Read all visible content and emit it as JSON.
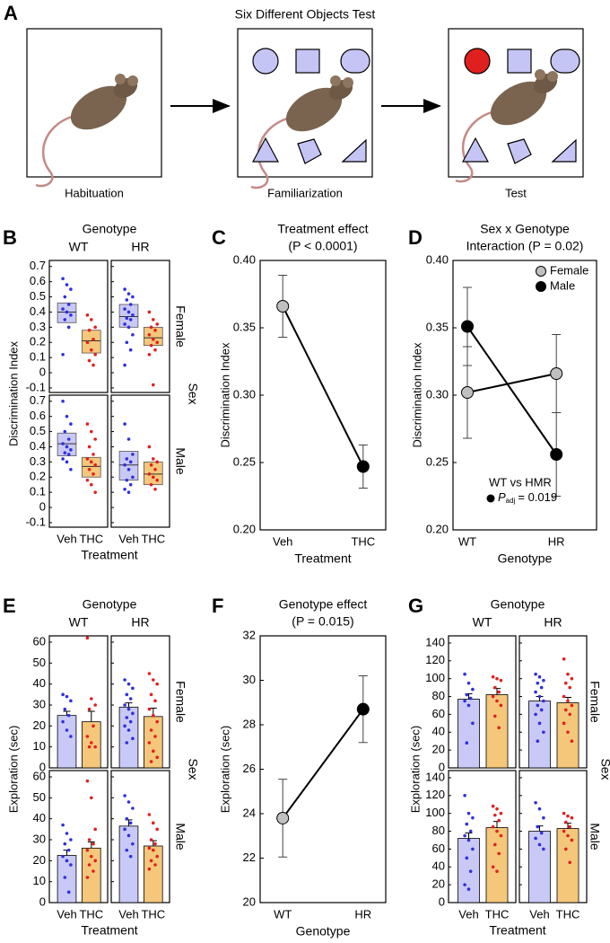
{
  "figure_a": {
    "panel_label": "A",
    "title": "Six Different Objects Test",
    "stages": [
      "Habituation",
      "Familiarization",
      "Test"
    ]
  },
  "chart_data": [
    {
      "type": "box_strip",
      "panel_label": "B",
      "column_title": "Genotype",
      "row_title": "Sex",
      "columns": [
        "WT",
        "HR"
      ],
      "rows": [
        "Female",
        "Male"
      ],
      "categories": [
        "Veh",
        "THC"
      ],
      "point_colors": [
        "#2f2fe0",
        "#e02020"
      ],
      "fill_colors": [
        "#c9c9f7",
        "#f5c77b"
      ],
      "xlabel": "Treatment",
      "ylabel": "Discrimination Index",
      "ylim": [
        -0.13,
        0.74
      ],
      "yticks": [
        -0.1,
        0,
        0.1,
        0.2,
        0.3,
        0.4,
        0.5,
        0.6,
        0.7
      ],
      "facets": [
        [
          [
            {
              "q1": 0.33,
              "median": 0.4,
              "q3": 0.46,
              "points": [
                0.62,
                0.58,
                0.55,
                0.5,
                0.45,
                0.42,
                0.4,
                0.38,
                0.35,
                0.3,
                0.12
              ]
            },
            {
              "q1": 0.13,
              "median": 0.21,
              "q3": 0.28,
              "points": [
                0.38,
                0.35,
                0.3,
                0.28,
                0.22,
                0.2,
                0.15,
                0.12,
                0.08,
                0.05
              ]
            }
          ],
          [
            {
              "q1": 0.3,
              "median": 0.37,
              "q3": 0.45,
              "points": [
                0.55,
                0.52,
                0.5,
                0.48,
                0.45,
                0.42,
                0.4,
                0.38,
                0.36,
                0.35,
                0.32,
                0.3,
                0.25,
                0.2,
                0.15,
                0.05
              ]
            },
            {
              "q1": 0.18,
              "median": 0.23,
              "q3": 0.3,
              "points": [
                0.4,
                0.35,
                0.32,
                0.3,
                0.28,
                0.25,
                0.22,
                0.2,
                0.18,
                0.15,
                0.12,
                -0.08
              ]
            }
          ]
        ],
        [
          [
            {
              "q1": 0.34,
              "median": 0.42,
              "q3": 0.49,
              "points": [
                0.7,
                0.6,
                0.55,
                0.5,
                0.45,
                0.42,
                0.4,
                0.38,
                0.36,
                0.35,
                0.32,
                0.3,
                0.25
              ]
            },
            {
              "q1": 0.2,
              "median": 0.27,
              "q3": 0.33,
              "points": [
                0.55,
                0.5,
                0.45,
                0.4,
                0.35,
                0.32,
                0.3,
                0.28,
                0.25,
                0.22,
                0.18,
                0.15,
                0.1
              ]
            }
          ],
          [
            {
              "q1": 0.18,
              "median": 0.28,
              "q3": 0.37,
              "points": [
                0.55,
                0.45,
                0.35,
                0.32,
                0.3,
                0.28,
                0.25,
                0.2,
                0.18,
                0.15,
                0.12,
                0.1
              ]
            },
            {
              "q1": 0.15,
              "median": 0.22,
              "q3": 0.3,
              "points": [
                0.4,
                0.32,
                0.3,
                0.28,
                0.25,
                0.22,
                0.2,
                0.18,
                0.15,
                0.12
              ]
            }
          ]
        ]
      ]
    },
    {
      "type": "line",
      "panel_label": "C",
      "title": [
        "Treatment effect",
        "(P < 0.0001)"
      ],
      "categories": [
        "Veh",
        "THC"
      ],
      "xlabel": "Treatment",
      "ylabel": "Discrimination Index",
      "ylim": [
        0.2,
        0.4
      ],
      "yticks": [
        {
          "value": 0.2,
          "label": "0.20"
        },
        {
          "value": 0.25,
          "label": "0.25"
        },
        {
          "value": 0.3,
          "label": "0.30"
        },
        {
          "value": 0.35,
          "label": "0.35"
        },
        {
          "value": 0.4,
          "label": "0.40"
        }
      ],
      "series": [
        {
          "color": "#000000",
          "point_colors": [
            "#c0c0c0",
            "#000000"
          ],
          "values": [
            0.366,
            0.247
          ],
          "errors": [
            0.023,
            0.016
          ]
        }
      ]
    },
    {
      "type": "line",
      "panel_label": "D",
      "title": [
        "Sex x Genotype",
        "Interaction (P = 0.02)"
      ],
      "categories": [
        "WT",
        "HR"
      ],
      "xlabel": "Genotype",
      "ylabel": "Discrimination Index",
      "ylim": [
        0.2,
        0.4
      ],
      "yticks": [
        {
          "value": 0.2,
          "label": "0.20"
        },
        {
          "value": 0.25,
          "label": "0.25"
        },
        {
          "value": 0.3,
          "label": "0.30"
        },
        {
          "value": 0.35,
          "label": "0.35"
        },
        {
          "value": 0.4,
          "label": "0.40"
        }
      ],
      "legend": "upper right",
      "series": [
        {
          "name": "Female",
          "color": "#c0c0c0",
          "values": [
            0.302,
            0.316
          ],
          "errors": [
            0.034,
            0.029
          ]
        },
        {
          "name": "Male",
          "color": "#000000",
          "values": [
            0.351,
            0.256
          ],
          "errors": [
            0.029,
            0.031
          ]
        }
      ],
      "annotation": {
        "title": "WT vs HMR",
        "symbol": "P",
        "subscript": "adj",
        "text": "= 0.019"
      }
    },
    {
      "type": "bar_strip",
      "panel_label": "E",
      "column_title": "Genotype",
      "row_title": "Sex",
      "columns": [
        "WT",
        "HR"
      ],
      "rows": [
        "Female",
        "Male"
      ],
      "categories": [
        "Veh",
        "THC"
      ],
      "point_colors": [
        "#2f2fe0",
        "#e02020"
      ],
      "fill_colors": [
        "#c9c9f7",
        "#f5c77b"
      ],
      "xlabel": "Treatment",
      "ylabel": "Exploration (sec)",
      "ylim": [
        0,
        63
      ],
      "yticks": [
        0,
        10,
        20,
        30,
        40,
        50,
        60
      ],
      "facets": [
        [
          [
            {
              "mean": 25,
              "error": 2,
              "points": [
                35,
                34,
                32,
                28,
                25,
                22,
                18,
                15
              ]
            },
            {
              "mean": 22,
              "error": 5,
              "points": [
                62,
                33,
                30,
                28,
                20,
                15,
                12,
                10,
                10
              ]
            }
          ],
          [
            {
              "mean": 29,
              "error": 2,
              "points": [
                42,
                40,
                38,
                35,
                33,
                30,
                28,
                26,
                24,
                22,
                20,
                18,
                14,
                12
              ]
            },
            {
              "mean": 24.5,
              "error": 4,
              "points": [
                45,
                42,
                40,
                35,
                32,
                28,
                25,
                22,
                18,
                15,
                12,
                8,
                5,
                3
              ]
            }
          ]
        ],
        [
          [
            {
              "mean": 22.5,
              "error": 2.5,
              "points": [
                37,
                33,
                30,
                28,
                25,
                22,
                20,
                18,
                12,
                5
              ]
            },
            {
              "mean": 26,
              "error": 3,
              "points": [
                58,
                50,
                35,
                30,
                28,
                25,
                22,
                20,
                18,
                15,
                12
              ]
            }
          ],
          [
            {
              "mean": 36.5,
              "error": 3,
              "points": [
                51,
                48,
                45,
                40,
                38,
                35,
                32,
                28,
                25,
                22
              ]
            },
            {
              "mean": 27,
              "error": 2.5,
              "points": [
                42,
                38,
                35,
                30,
                28,
                26,
                25,
                22,
                20,
                18,
                16
              ]
            }
          ]
        ]
      ]
    },
    {
      "type": "line",
      "panel_label": "F",
      "title": [
        "Genotype effect",
        "(P = 0.015)"
      ],
      "categories": [
        "WT",
        "HR"
      ],
      "xlabel": "Genotype",
      "ylabel": "Exploration (sec)",
      "ylim": [
        20,
        32
      ],
      "yticks": [
        20,
        22,
        24,
        26,
        28,
        30,
        32
      ],
      "series": [
        {
          "color": "#000000",
          "point_colors": [
            "#c0c0c0",
            "#000000"
          ],
          "values": [
            23.8,
            28.7
          ],
          "errors": [
            1.75,
            1.5
          ]
        }
      ]
    },
    {
      "type": "bar_strip",
      "panel_label": "G",
      "column_title": "Genotype",
      "row_title": "Sex",
      "columns": [
        "WT",
        "HR"
      ],
      "rows": [
        "Female",
        "Male"
      ],
      "categories": [
        "Veh",
        "THC"
      ],
      "point_colors": [
        "#2f2fe0",
        "#e02020"
      ],
      "fill_colors": [
        "#c9c9f7",
        "#f5c77b"
      ],
      "xlabel": "Treatment",
      "ylabel": "Exploration (sec)",
      "ylim": [
        0,
        148
      ],
      "yticks": [
        0,
        20,
        40,
        60,
        80,
        100,
        120,
        140
      ],
      "facets": [
        [
          [
            {
              "mean": 77,
              "error": 6,
              "points": [
                105,
                95,
                88,
                82,
                78,
                75,
                70,
                50,
                28
              ]
            },
            {
              "mean": 82,
              "error": 7,
              "points": [
                102,
                100,
                98,
                90,
                85,
                80,
                75,
                70,
                58,
                45
              ]
            }
          ],
          [
            {
              "mean": 75,
              "error": 5,
              "points": [
                105,
                102,
                98,
                95,
                90,
                85,
                80,
                75,
                70,
                65,
                60,
                50,
                40,
                30
              ]
            },
            {
              "mean": 73,
              "error": 6,
              "points": [
                122,
                105,
                100,
                95,
                90,
                80,
                75,
                70,
                65,
                60,
                50,
                40,
                30
              ]
            }
          ]
        ],
        [
          [
            {
              "mean": 72,
              "error": 6,
              "points": [
                120,
                100,
                95,
                88,
                80,
                75,
                70,
                60,
                50,
                35,
                20,
                15
              ]
            },
            {
              "mean": 84,
              "error": 7,
              "points": [
                108,
                105,
                100,
                98,
                92,
                85,
                80,
                75,
                65,
                55,
                40,
                35
              ]
            }
          ],
          [
            {
              "mean": 80,
              "error": 6,
              "points": [
                112,
                105,
                95,
                85,
                78,
                72,
                65,
                60
              ]
            },
            {
              "mean": 83,
              "error": 6,
              "points": [
                100,
                97,
                95,
                90,
                85,
                80,
                75,
                70,
                60,
                45
              ]
            }
          ]
        ]
      ]
    }
  ]
}
